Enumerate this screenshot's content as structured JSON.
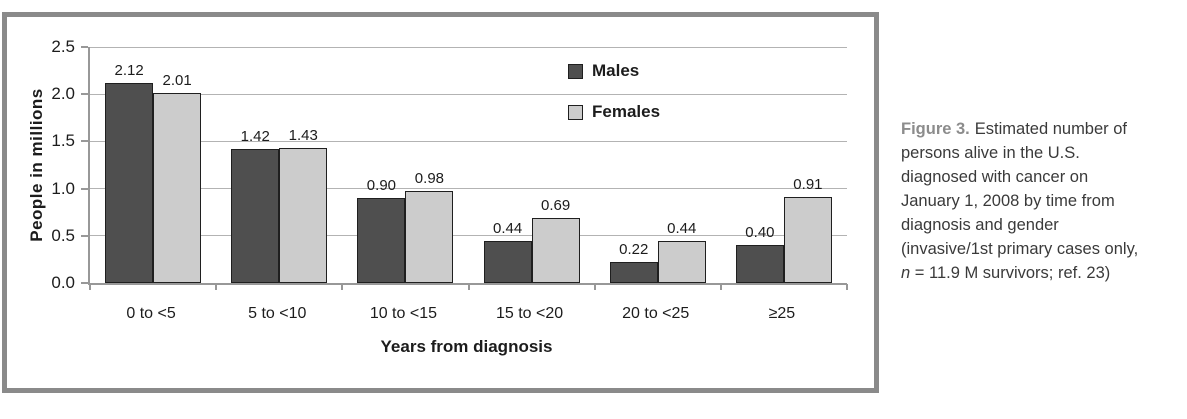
{
  "figure": {
    "caption": {
      "label": "Figure 3.",
      "text_before_n": "Estimated number of persons alive in the U.S. diagnosed with cancer on January 1, 2008 by time from diagnosis and gender (invasive/1st primary cases only, ",
      "n_var": "n",
      "text_after_n": " = 11.9 M survivors; ref. 23)"
    }
  },
  "chart_data": {
    "type": "bar",
    "title": "",
    "categories": [
      "0 to <5",
      "5 to <10",
      "10 to <15",
      "15 to <20",
      "20 to <25",
      "≥25"
    ],
    "series": [
      {
        "name": "Males",
        "color": "#4f4f4f",
        "values": [
          2.12,
          1.42,
          0.9,
          0.44,
          0.22,
          0.4
        ],
        "value_labels": [
          "2.12",
          "1.42",
          "0.90",
          "0.44",
          "0.22",
          "0.40"
        ]
      },
      {
        "name": "Females",
        "color": "#cccccc",
        "values": [
          2.01,
          1.43,
          0.98,
          0.69,
          0.44,
          0.91
        ],
        "value_labels": [
          "2.01",
          "1.43",
          "0.98",
          "0.69",
          "0.44",
          "0.91"
        ]
      }
    ],
    "xlabel": "Years from diagnosis",
    "ylabel": "People in millions",
    "ylim": [
      0,
      2.5
    ],
    "yticks": [
      0.0,
      0.5,
      1.0,
      1.5,
      2.0,
      2.5
    ],
    "ytick_labels": [
      "0.0",
      "0.5",
      "1.0",
      "1.5",
      "2.0",
      "2.5"
    ],
    "grid": true,
    "legend_position": "inside-upper-center",
    "value_labels_shown": true
  },
  "colors": {
    "male_bar": "#4f4f4f",
    "female_bar": "#cccccc",
    "bar_border": "#1f1f1f",
    "gridline": "#b3b3b3",
    "axis": "#989898",
    "panel_border": "#8a8a8a",
    "caption_label": "#8c8c8c",
    "caption_text": "#3a3a3a"
  }
}
